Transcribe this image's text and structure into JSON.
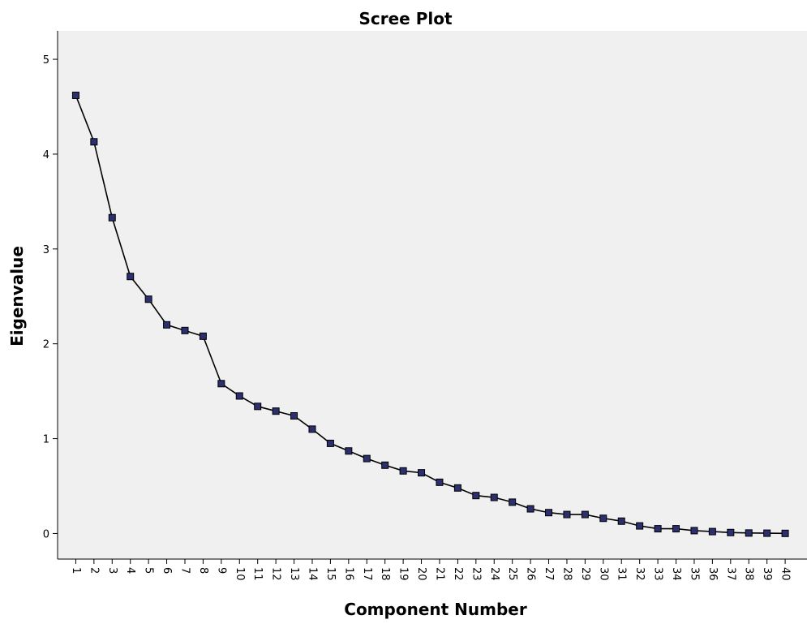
{
  "chart_data": {
    "type": "line",
    "title": "Scree Plot",
    "xlabel": "Component Number",
    "ylabel": "Eigenvalue",
    "x": [
      1,
      2,
      3,
      4,
      5,
      6,
      7,
      8,
      9,
      10,
      11,
      12,
      13,
      14,
      15,
      16,
      17,
      18,
      19,
      20,
      21,
      22,
      23,
      24,
      25,
      26,
      27,
      28,
      29,
      30,
      31,
      32,
      33,
      34,
      35,
      36,
      37,
      38,
      39,
      40
    ],
    "series": [
      {
        "values": [
          4.62,
          4.13,
          3.33,
          2.71,
          2.47,
          2.2,
          2.14,
          2.08,
          1.58,
          1.45,
          1.34,
          1.29,
          1.24,
          1.1,
          0.95,
          0.87,
          0.79,
          0.72,
          0.66,
          0.64,
          0.54,
          0.48,
          0.4,
          0.38,
          0.33,
          0.26,
          0.22,
          0.2,
          0.2,
          0.16,
          0.13,
          0.08,
          0.05,
          0.05,
          0.03,
          0.02,
          0.01,
          0.005,
          0.003,
          0.001
        ]
      }
    ],
    "yticks": [
      0,
      1,
      2,
      3,
      4,
      5
    ],
    "ylim": [
      -0.27,
      5.3
    ],
    "xlim": [
      0,
      41.2
    ],
    "grid": false,
    "marker": "square",
    "colors": {
      "plot_background": "#f0f0f0",
      "line": "#000000",
      "marker_fill": "#2b2f6e",
      "marker_edge": "#000000"
    }
  }
}
